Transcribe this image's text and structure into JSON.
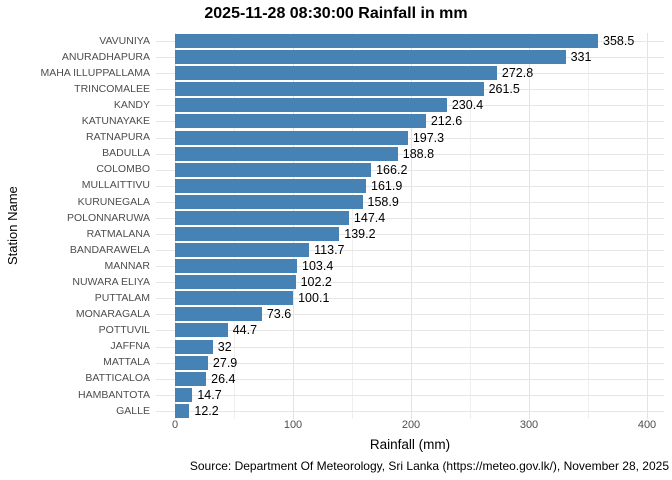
{
  "chart_data": {
    "type": "bar",
    "orientation": "horizontal",
    "title": "2025-11-28 08:30:00 Rainfall in mm",
    "xlabel": "Rainfall (mm)",
    "ylabel": "Station Name",
    "caption": "Source: Department Of Meteorology, Sri Lanka (https://meteo.gov.lk/), November 28, 2025",
    "categories": [
      "VAVUNIYA",
      "ANURADHAPURA",
      "MAHA ILLUPPALLAMA",
      "TRINCOMALEE",
      "KANDY",
      "KATUNAYAKE",
      "RATNAPURA",
      "BADULLA",
      "COLOMBO",
      "MULLAITTIVU",
      "KURUNEGALA",
      "POLONNARUWA",
      "RATMALANA",
      "BANDARAWELA",
      "MANNAR",
      "NUWARA ELIYA",
      "PUTTALAM",
      "MONARAGALA",
      "POTTUVIL",
      "JAFFNA",
      "MATTALA",
      "BATTICALOA",
      "HAMBANTOTA",
      "GALLE"
    ],
    "values": [
      358.5,
      331,
      272.8,
      261.5,
      230.4,
      212.6,
      197.3,
      188.8,
      166.2,
      161.9,
      158.9,
      147.4,
      139.2,
      113.7,
      103.4,
      102.2,
      100.1,
      73.6,
      44.7,
      32,
      27.9,
      26.4,
      14.7,
      12.2
    ],
    "value_labels": [
      "358.5",
      "331",
      "272.8",
      "261.5",
      "230.4",
      "212.6",
      "197.3",
      "188.8",
      "166.2",
      "161.9",
      "158.9",
      "147.4",
      "139.2",
      "113.7",
      "103.4",
      "102.2",
      "100.1",
      "73.6",
      "44.7",
      "32",
      "27.9",
      "26.4",
      "14.7",
      "12.2"
    ],
    "x_ticks": [
      0,
      100,
      200,
      300,
      400
    ],
    "x_minor_ticks": [
      50,
      150,
      250,
      350
    ],
    "xlim": [
      0,
      400
    ],
    "grid": true,
    "legend": false,
    "colors": {
      "bar": "#4682B4",
      "grid_major": "#e3e3e3",
      "grid_minor": "#efefef",
      "axis_text": "#4d4d4d",
      "text": "#000000",
      "background": "#ffffff"
    }
  }
}
